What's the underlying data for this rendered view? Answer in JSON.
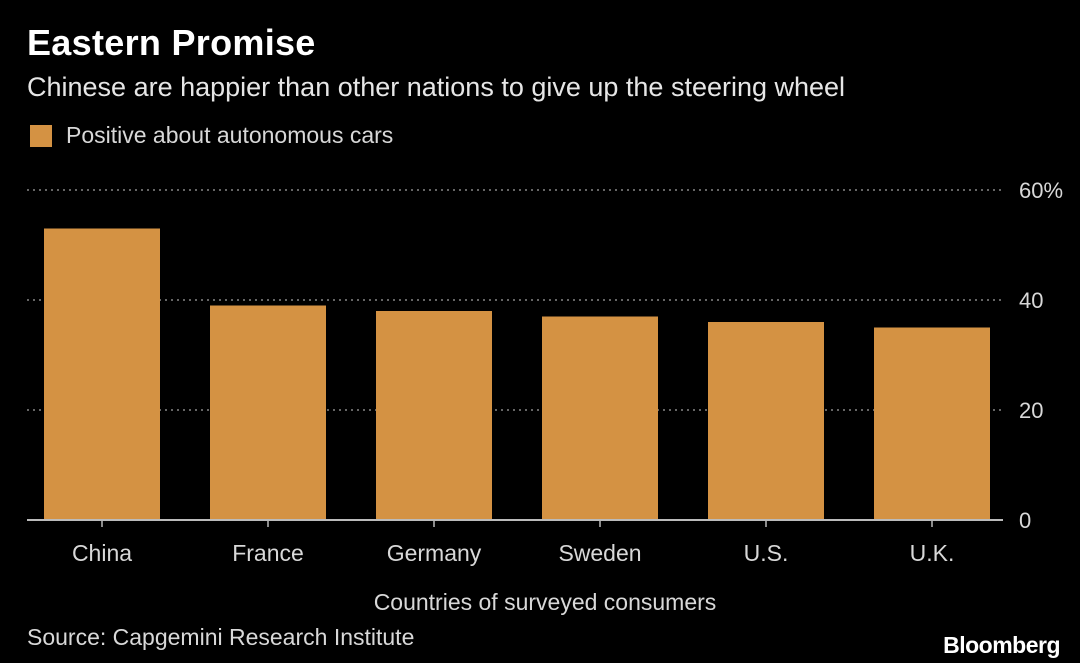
{
  "title": "Eastern Promise",
  "subtitle": "Chinese are happier than other nations to give up the steering wheel",
  "source": "Source: Capgemini Research Institute",
  "brand": "Bloomberg",
  "colors": {
    "bar": "#d49243",
    "background": "#000000",
    "grid": "#888888",
    "axis": "#bbbbbb",
    "text": "#d8d8d8"
  },
  "chart_data": {
    "type": "bar",
    "title": "Eastern Promise",
    "subtitle": "Chinese are happier than other nations to give up the steering wheel",
    "xlabel": "Countries of surveyed consumers",
    "ylabel": "",
    "categories": [
      "China",
      "France",
      "Germany",
      "Sweden",
      "U.S.",
      "U.K."
    ],
    "series": [
      {
        "name": "Positive about autonomous cars",
        "values": [
          53,
          39,
          38,
          37,
          36,
          35
        ]
      }
    ],
    "ylim": [
      0,
      60
    ],
    "yticks": [
      0,
      20,
      40,
      60
    ],
    "ytick_labels": [
      "0",
      "20",
      "40",
      "60%"
    ],
    "grid": true,
    "legend_position": "top-left",
    "yaxis_side": "right"
  }
}
